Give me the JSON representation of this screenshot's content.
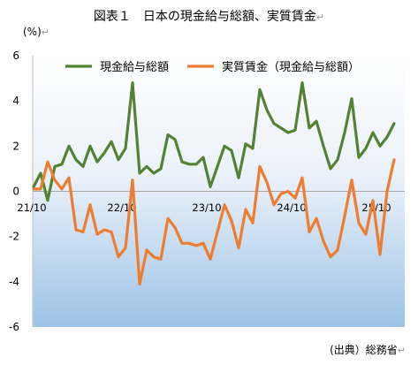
{
  "title": "図表１　日本の現金給与総額、実質賃金",
  "title_mark": "↵",
  "unit": "(%)",
  "unit_mark": "↵",
  "source": "(出典）総務省",
  "source_mark": "↵",
  "chart_data": {
    "type": "line",
    "title": "図表１　日本の現金給与総額、実質賃金",
    "ylabel": "(%)",
    "ylim": [
      -6,
      6
    ],
    "yticks": [
      6,
      4,
      2,
      0,
      -2,
      -4,
      -6
    ],
    "xtick_labels": [
      "21/10",
      "22/10",
      "23/10",
      "24/10",
      "25/10"
    ],
    "xtick_index": [
      0,
      12,
      24,
      36,
      48
    ],
    "legend_position": "top",
    "grid": false,
    "colors": {
      "series_0": "#548235",
      "series_1": "#ED7D31"
    },
    "series": [
      {
        "name": "現金給与総額",
        "values": [
          0.2,
          0.8,
          -0.4,
          1.1,
          1.2,
          2.0,
          1.4,
          1.1,
          2.0,
          1.3,
          1.7,
          2.2,
          1.4,
          1.9,
          4.8,
          0.8,
          1.1,
          0.8,
          1.0,
          2.5,
          2.3,
          1.3,
          1.2,
          1.2,
          1.5,
          0.2,
          1.1,
          2.0,
          1.8,
          0.6,
          2.1,
          1.9,
          4.5,
          3.6,
          3.0,
          2.8,
          2.6,
          2.7,
          4.8,
          2.8,
          3.1,
          2.0,
          1.0,
          1.4,
          2.6,
          4.1,
          1.5,
          1.9,
          2.6,
          2.0,
          2.4,
          3.0
        ]
      },
      {
        "name": "実質賃金（現金給与総額）",
        "values": [
          0.1,
          0.1,
          1.3,
          0.5,
          0.1,
          0.6,
          -1.7,
          -1.8,
          -0.6,
          -1.9,
          -1.7,
          -1.8,
          -2.9,
          -2.5,
          0.5,
          -4.1,
          -2.6,
          -2.9,
          -3.0,
          -1.2,
          -1.6,
          -2.3,
          -2.3,
          -2.4,
          -2.3,
          -3.0,
          -1.8,
          -0.6,
          -1.3,
          -2.5,
          -0.8,
          -1.4,
          1.1,
          0.4,
          -0.6,
          -0.1,
          0.0,
          -0.3,
          0.6,
          -1.8,
          -1.2,
          -2.2,
          -2.9,
          -2.6,
          -1.1,
          0.5,
          -1.4,
          -1.9,
          -0.4,
          -2.8,
          0.0,
          1.4
        ]
      }
    ]
  }
}
